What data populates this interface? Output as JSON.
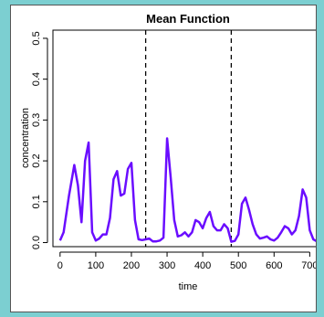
{
  "chart_data": {
    "type": "line",
    "title": "Mean Function",
    "xlabel": "time",
    "ylabel": "concentration",
    "xlim": [
      -20,
      740
    ],
    "ylim": [
      -0.01,
      0.52
    ],
    "xticks": [
      0,
      100,
      200,
      300,
      400,
      500,
      600,
      700
    ],
    "yticks": [
      0.0,
      0.1,
      0.2,
      0.3,
      0.4,
      0.5
    ],
    "ytick_labels": [
      "0.0",
      "0.1",
      "0.2",
      "0.3",
      "0.4",
      "0.5"
    ],
    "grid": false,
    "vlines": [
      240,
      480
    ],
    "series": [
      {
        "color": "#6a0dff",
        "x": [
          0,
          10,
          25,
          40,
          50,
          60,
          70,
          80,
          90,
          100,
          110,
          120,
          130,
          140,
          150,
          160,
          170,
          180,
          190,
          200,
          210,
          220,
          230,
          240,
          250,
          260,
          270,
          280,
          290,
          300,
          310,
          320,
          330,
          340,
          350,
          360,
          370,
          380,
          390,
          400,
          410,
          420,
          430,
          440,
          450,
          460,
          470,
          480,
          490,
          500,
          510,
          520,
          530,
          540,
          550,
          560,
          570,
          580,
          590,
          600,
          610,
          620,
          630,
          640,
          650,
          660,
          670,
          680,
          690,
          700,
          710,
          720
        ],
        "y": [
          0.005,
          0.025,
          0.115,
          0.19,
          0.14,
          0.05,
          0.2,
          0.245,
          0.025,
          0.005,
          0.01,
          0.02,
          0.02,
          0.06,
          0.155,
          0.175,
          0.115,
          0.12,
          0.18,
          0.195,
          0.055,
          0.008,
          0.006,
          0.008,
          0.01,
          0.003,
          0.003,
          0.005,
          0.012,
          0.255,
          0.16,
          0.055,
          0.015,
          0.018,
          0.025,
          0.015,
          0.025,
          0.055,
          0.05,
          0.035,
          0.06,
          0.075,
          0.04,
          0.03,
          0.03,
          0.045,
          0.035,
          0.002,
          0.004,
          0.02,
          0.095,
          0.11,
          0.08,
          0.045,
          0.02,
          0.01,
          0.012,
          0.015,
          0.008,
          0.005,
          0.012,
          0.025,
          0.04,
          0.035,
          0.02,
          0.03,
          0.065,
          0.13,
          0.11,
          0.03,
          0.008,
          0.003
        ]
      }
    ]
  }
}
